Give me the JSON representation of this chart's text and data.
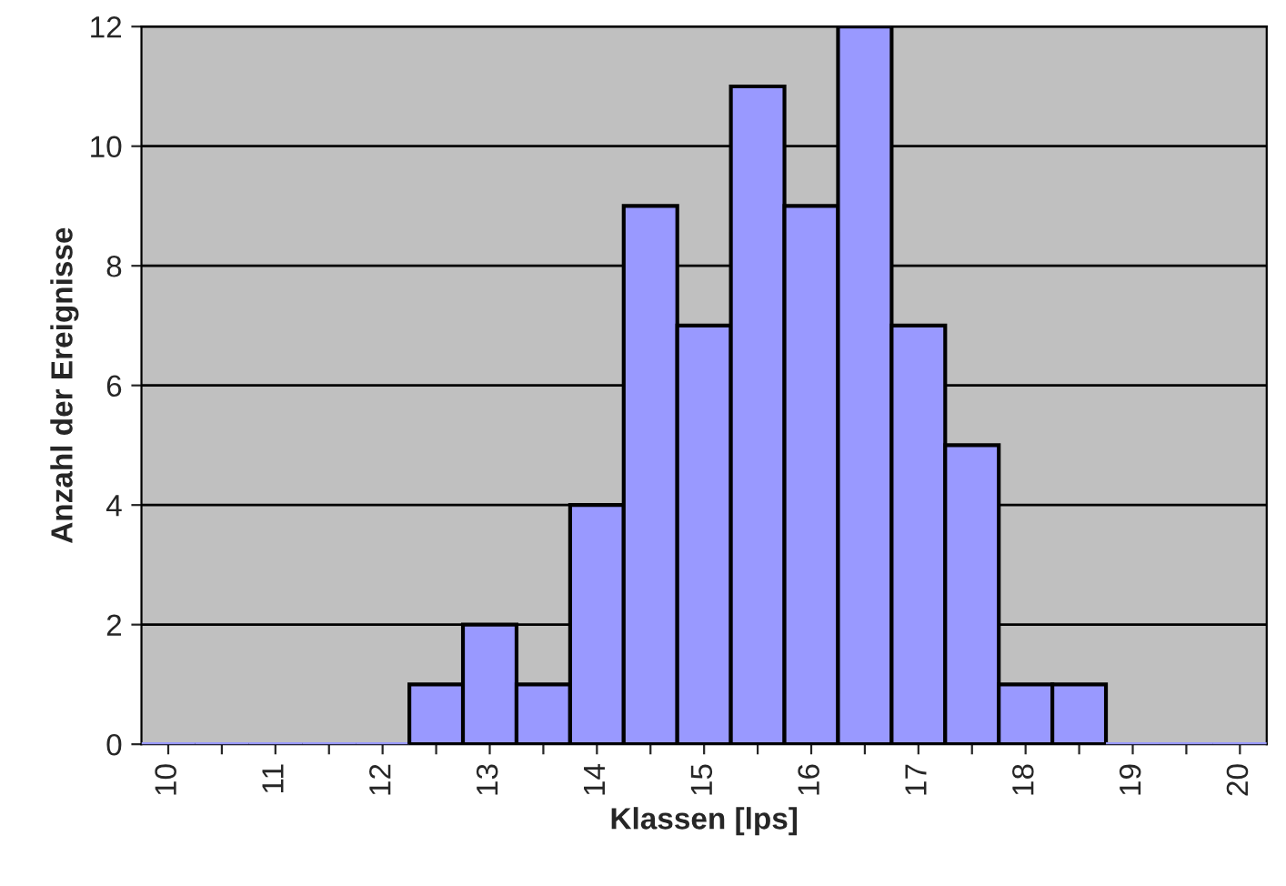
{
  "chart_data": {
    "type": "bar",
    "xlabel": "Klassen [lps]",
    "ylabel": "Anzahl der Ereignisse",
    "categories": [
      "10",
      null,
      "11",
      null,
      "12",
      null,
      "13",
      null,
      "14",
      null,
      "15",
      null,
      "16",
      null,
      "17",
      null,
      "18",
      null,
      "19",
      null,
      "20"
    ],
    "values": [
      0,
      0,
      0,
      0,
      0,
      1,
      2,
      1,
      4,
      9,
      7,
      11,
      9,
      12,
      7,
      5,
      1,
      1,
      0,
      0,
      0
    ],
    "color": "#9999ff",
    "ylim": [
      0,
      12
    ],
    "yticks": [
      0,
      2,
      4,
      6,
      8,
      10,
      12
    ],
    "grid": "y"
  }
}
